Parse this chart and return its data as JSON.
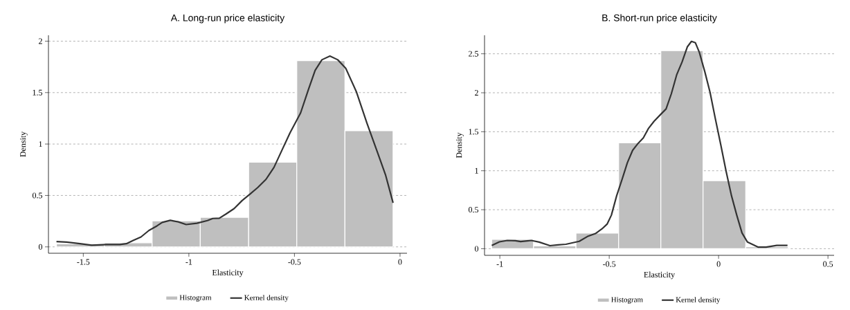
{
  "chart_data": [
    {
      "type": "histogram",
      "title": "A. Long-run price elasticity",
      "xlabel": "Elasticity",
      "ylabel": "Density",
      "bins": [
        -1.627,
        -1.4,
        -1.174,
        -0.946,
        -0.717,
        -0.489,
        -0.261,
        -0.033
      ],
      "series": [
        {
          "name": "Histogram",
          "color": "#bfbfbf",
          "values": [
            0.03,
            0.04,
            0.253,
            0.287,
            0.824,
            1.811,
            1.129
          ]
        },
        {
          "name": "Kernel density",
          "type": "line",
          "color": "#333333",
          "x": [
            -1.627,
            -1.579,
            -1.516,
            -1.46,
            -1.39,
            -1.327,
            -1.296,
            -1.264,
            -1.227,
            -1.189,
            -1.151,
            -1.126,
            -1.088,
            -1.05,
            -1.013,
            -0.962,
            -0.912,
            -0.887,
            -0.856,
            -0.824,
            -0.786,
            -0.748,
            -0.71,
            -0.673,
            -0.635,
            -0.597,
            -0.559,
            -0.521,
            -0.471,
            -0.433,
            -0.402,
            -0.37,
            -0.332,
            -0.295,
            -0.257,
            -0.207,
            -0.156,
            -0.106,
            -0.068,
            -0.033
          ],
          "values": [
            0.052,
            0.047,
            0.031,
            0.016,
            0.023,
            0.023,
            0.031,
            0.062,
            0.096,
            0.16,
            0.204,
            0.238,
            0.258,
            0.243,
            0.217,
            0.23,
            0.256,
            0.276,
            0.279,
            0.32,
            0.372,
            0.45,
            0.514,
            0.579,
            0.656,
            0.773,
            0.941,
            1.109,
            1.302,
            1.535,
            1.716,
            1.819,
            1.855,
            1.819,
            1.736,
            1.509,
            1.199,
            0.915,
            0.695,
            0.428
          ]
        }
      ],
      "xlim": [
        -1.665,
        0.033
      ],
      "ylim": [
        -0.062,
        2.057
      ],
      "xticks": [
        -1.5,
        -1,
        -0.5,
        0
      ],
      "yticks": [
        0,
        0.5,
        1,
        1.5,
        2
      ],
      "grid": "y",
      "legend": "bottom"
    },
    {
      "type": "histogram",
      "title": "B. Short-run price elasticity",
      "xlabel": "Elasticity",
      "ylabel": "Density",
      "bins": [
        -1.037,
        -0.846,
        -0.652,
        -0.457,
        -0.264,
        -0.071,
        0.124,
        0.318
      ],
      "series": [
        {
          "name": "Histogram",
          "color": "#bfbfbf",
          "values": [
            0.12,
            0.035,
            0.2,
            1.358,
            2.54,
            0.873,
            0.025
          ]
        },
        {
          "name": "Kernel density",
          "type": "line",
          "color": "#333333",
          "x": [
            -1.037,
            -1.002,
            -0.966,
            -0.929,
            -0.905,
            -0.856,
            -0.82,
            -0.771,
            -0.734,
            -0.698,
            -0.637,
            -0.6,
            -0.563,
            -0.533,
            -0.509,
            -0.49,
            -0.466,
            -0.441,
            -0.417,
            -0.393,
            -0.368,
            -0.344,
            -0.32,
            -0.295,
            -0.265,
            -0.24,
            -0.216,
            -0.191,
            -0.167,
            -0.143,
            -0.124,
            -0.106,
            -0.088,
            -0.063,
            -0.039,
            -0.015,
            0.01,
            0.034,
            0.059,
            0.083,
            0.107,
            0.132,
            0.18,
            0.217,
            0.266,
            0.315
          ],
          "values": [
            0.042,
            0.088,
            0.106,
            0.103,
            0.092,
            0.106,
            0.085,
            0.039,
            0.05,
            0.057,
            0.095,
            0.156,
            0.194,
            0.255,
            0.318,
            0.431,
            0.679,
            0.891,
            1.103,
            1.262,
            1.351,
            1.422,
            1.545,
            1.634,
            1.722,
            1.793,
            1.987,
            2.235,
            2.394,
            2.588,
            2.659,
            2.641,
            2.518,
            2.27,
            2.005,
            1.669,
            1.333,
            0.997,
            0.679,
            0.431,
            0.202,
            0.085,
            0.021,
            0.021,
            0.042,
            0.042
          ]
        }
      ],
      "xlim": [
        -1.07,
        0.528
      ],
      "ylim": [
        -0.085,
        2.737
      ],
      "xticks": [
        -1,
        -0.5,
        0,
        0.5
      ],
      "yticks": [
        0,
        0.5,
        1,
        1.5,
        2,
        2.5
      ],
      "grid": "y",
      "legend": "bottom"
    }
  ]
}
